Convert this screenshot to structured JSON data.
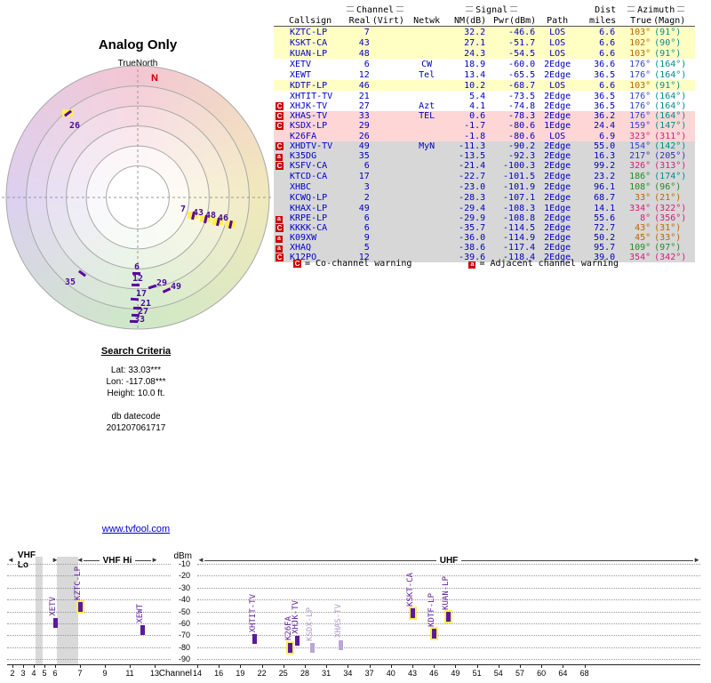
{
  "radar": {
    "title": "Analog Only",
    "north_label": "TrueNorth",
    "n_marker": "N",
    "markers": [
      {
        "label": "26",
        "lx": 78,
        "ly": 98,
        "bx": 72,
        "by": 88,
        "rot": -37,
        "hl": true
      },
      {
        "label": "7",
        "lx": 203,
        "ly": 192,
        "bx": 213,
        "by": 203,
        "rot": -77,
        "hl": true
      },
      {
        "label": "43",
        "lx": 217,
        "ly": 196,
        "bx": 227,
        "by": 207,
        "rot": -77,
        "hl": true
      },
      {
        "label": "48",
        "lx": 231,
        "ly": 199,
        "bx": 241,
        "by": 210,
        "rot": -77,
        "hl": true
      },
      {
        "label": "46",
        "lx": 245,
        "ly": 202,
        "bx": 255,
        "by": 213,
        "rot": -77,
        "hl": true
      },
      {
        "label": "35",
        "lx": 73,
        "ly": 274,
        "bx": 88,
        "by": 268,
        "rot": 37,
        "hl": false
      },
      {
        "label": "6",
        "lx": 151,
        "ly": 257,
        "bx": 149,
        "by": 268,
        "rot": 2,
        "hl": false
      },
      {
        "label": "12",
        "lx": 149,
        "ly": 270,
        "bx": 148,
        "by": 281,
        "rot": 2,
        "hl": false
      },
      {
        "label": "29",
        "lx": 176,
        "ly": 275,
        "bx": 167,
        "by": 283,
        "rot": -18,
        "hl": false
      },
      {
        "label": "49",
        "lx": 192,
        "ly": 279,
        "bx": 183,
        "by": 287,
        "rot": -24,
        "hl": false
      },
      {
        "label": "17",
        "lx": 153,
        "ly": 287,
        "bx": 147,
        "by": 297,
        "rot": 4,
        "hl": false
      },
      {
        "label": "21",
        "lx": 158,
        "ly": 298,
        "bx": 150,
        "by": 307,
        "rot": 2,
        "hl": false
      },
      {
        "label": "27",
        "lx": 155,
        "ly": 307,
        "bx": 148,
        "by": 315,
        "rot": 2,
        "hl": false
      },
      {
        "label": "33",
        "lx": 151,
        "ly": 316,
        "bx": 146,
        "by": 322,
        "rot": 2,
        "hl": false
      }
    ]
  },
  "table": {
    "groups": {
      "channel": "Channel",
      "signal": "Signal",
      "dist": "Dist",
      "azimuth": "Azimuth"
    },
    "columns": [
      "Callsign",
      "Real",
      "(Virt)",
      "Netwk",
      "NM(dB)",
      "Pwr(dBm)",
      "Path",
      "miles",
      "True",
      "(Magn)"
    ],
    "legend": {
      "c_badge": "C",
      "c_text": "= Co-channel warning",
      "a_badge": "a",
      "a_text": "= Adjacent channel warning"
    },
    "rows": [
      {
        "warn": "",
        "callsign": "KZTC-LP",
        "real": "7",
        "virt": "",
        "netwk": "",
        "nm": "32.2",
        "pwr": "-46.6",
        "path": "LOS",
        "miles": "6.6",
        "true": "103°",
        "magn": "(91°)",
        "tier": "yellow",
        "tc": "#bb6600",
        "mc": "#008b8b"
      },
      {
        "warn": "",
        "callsign": "KSKT-CA",
        "real": "43",
        "virt": "",
        "netwk": "",
        "nm": "27.1",
        "pwr": "-51.7",
        "path": "LOS",
        "miles": "6.6",
        "true": "102°",
        "magn": "(90°)",
        "tier": "yellow",
        "tc": "#bb6600",
        "mc": "#008b8b"
      },
      {
        "warn": "",
        "callsign": "KUAN-LP",
        "real": "48",
        "virt": "",
        "netwk": "",
        "nm": "24.3",
        "pwr": "-54.5",
        "path": "LOS",
        "miles": "6.6",
        "true": "103°",
        "magn": "(91°)",
        "tier": "yellow",
        "tc": "#bb6600",
        "mc": "#008b8b"
      },
      {
        "warn": "",
        "callsign": "XETV",
        "real": "6",
        "virt": "",
        "netwk": "CW",
        "nm": "18.9",
        "pwr": "-60.0",
        "path": "2Edge",
        "miles": "36.6",
        "true": "176°",
        "magn": "(164°)",
        "tier": "white",
        "tc": "#3344cc",
        "mc": "#008b8b"
      },
      {
        "warn": "",
        "callsign": "XEWT",
        "real": "12",
        "virt": "",
        "netwk": "Tel",
        "nm": "13.4",
        "pwr": "-65.5",
        "path": "2Edge",
        "miles": "36.5",
        "true": "176°",
        "magn": "(164°)",
        "tier": "white",
        "tc": "#3344cc",
        "mc": "#008b8b"
      },
      {
        "warn": "",
        "callsign": "KDTF-LP",
        "real": "46",
        "virt": "",
        "netwk": "",
        "nm": "10.2",
        "pwr": "-68.7",
        "path": "LOS",
        "miles": "6.6",
        "true": "103°",
        "magn": "(91°)",
        "tier": "yellow",
        "tc": "#bb6600",
        "mc": "#008b8b"
      },
      {
        "warn": "",
        "callsign": "XHTIT-TV",
        "real": "21",
        "virt": "",
        "netwk": "",
        "nm": "5.4",
        "pwr": "-73.5",
        "path": "2Edge",
        "miles": "36.5",
        "true": "176°",
        "magn": "(164°)",
        "tier": "white",
        "tc": "#3344cc",
        "mc": "#008b8b"
      },
      {
        "warn": "C",
        "callsign": "XHJK-TV",
        "real": "27",
        "virt": "",
        "netwk": "Azt",
        "nm": "4.1",
        "pwr": "-74.8",
        "path": "2Edge",
        "miles": "36.5",
        "true": "176°",
        "magn": "(164°)",
        "tier": "white",
        "tc": "#3344cc",
        "mc": "#008b8b"
      },
      {
        "warn": "C",
        "callsign": "XHAS-TV",
        "real": "33",
        "virt": "",
        "netwk": "TEL",
        "nm": "0.6",
        "pwr": "-78.3",
        "path": "2Edge",
        "miles": "36.2",
        "true": "176°",
        "magn": "(164°)",
        "tier": "pink",
        "tc": "#3344cc",
        "mc": "#008b8b"
      },
      {
        "warn": "C",
        "callsign": "KSDX-LP",
        "real": "29",
        "virt": "",
        "netwk": "",
        "nm": "-1.7",
        "pwr": "-80.6",
        "path": "1Edge",
        "miles": "24.4",
        "true": "159°",
        "magn": "(147°)",
        "tier": "pink",
        "tc": "#3344cc",
        "mc": "#008b8b"
      },
      {
        "warn": "",
        "callsign": "K26FA",
        "real": "26",
        "virt": "",
        "netwk": "",
        "nm": "-1.8",
        "pwr": "-80.6",
        "path": "LOS",
        "miles": "6.9",
        "true": "323°",
        "magn": "(311°)",
        "tier": "pink",
        "tc": "#cc2277",
        "mc": "#cc2277"
      },
      {
        "warn": "C",
        "callsign": "XHDTV-TV",
        "real": "49",
        "virt": "",
        "netwk": "MyN",
        "nm": "-11.3",
        "pwr": "-90.2",
        "path": "2Edge",
        "miles": "55.0",
        "true": "154°",
        "magn": "(142°)",
        "tier": "gray",
        "tc": "#3344cc",
        "mc": "#008b8b"
      },
      {
        "warn": "a",
        "callsign": "K35DG",
        "real": "35",
        "virt": "",
        "netwk": "",
        "nm": "-13.5",
        "pwr": "-92.3",
        "path": "2Edge",
        "miles": "16.3",
        "true": "217°",
        "magn": "(205°)",
        "tier": "gray",
        "tc": "#3333aa",
        "mc": "#3333aa"
      },
      {
        "warn": "C",
        "callsign": "KSFV-CA",
        "real": "6",
        "virt": "",
        "netwk": "",
        "nm": "-21.4",
        "pwr": "-100.3",
        "path": "2Edge",
        "miles": "99.2",
        "true": "326°",
        "magn": "(313°)",
        "tier": "gray",
        "tc": "#cc2277",
        "mc": "#cc2277"
      },
      {
        "warn": "",
        "callsign": "KTCD-CA",
        "real": "17",
        "virt": "",
        "netwk": "",
        "nm": "-22.7",
        "pwr": "-101.5",
        "path": "2Edge",
        "miles": "23.2",
        "true": "186°",
        "magn": "(174°)",
        "tier": "gray",
        "tc": "#1f8b1f",
        "mc": "#008b8b"
      },
      {
        "warn": "",
        "callsign": "XHBC",
        "real": "3",
        "virt": "",
        "netwk": "",
        "nm": "-23.0",
        "pwr": "-101.9",
        "path": "2Edge",
        "miles": "96.1",
        "true": "108°",
        "magn": "(96°)",
        "tier": "gray",
        "tc": "#1f8b1f",
        "mc": "#1f8b1f"
      },
      {
        "warn": "",
        "callsign": "KCWQ-LP",
        "real": "2",
        "virt": "",
        "netwk": "",
        "nm": "-28.3",
        "pwr": "-107.1",
        "path": "2Edge",
        "miles": "68.7",
        "true": "33°",
        "magn": "(21°)",
        "tier": "gray",
        "tc": "#bb6600",
        "mc": "#bb6600"
      },
      {
        "warn": "",
        "callsign": "KHAX-LP",
        "real": "49",
        "virt": "",
        "netwk": "",
        "nm": "-29.4",
        "pwr": "-108.3",
        "path": "1Edge",
        "miles": "14.1",
        "true": "334°",
        "magn": "(322°)",
        "tier": "gray",
        "tc": "#cc2277",
        "mc": "#cc2277"
      },
      {
        "warn": "a",
        "callsign": "KRPE-LP",
        "real": "6",
        "virt": "",
        "netwk": "",
        "nm": "-29.9",
        "pwr": "-108.8",
        "path": "2Edge",
        "miles": "55.6",
        "true": "8°",
        "magn": "(356°)",
        "tier": "gray",
        "tc": "#cc2277",
        "mc": "#cc2277"
      },
      {
        "warn": "C",
        "callsign": "KKKK-CA",
        "real": "6",
        "virt": "",
        "netwk": "",
        "nm": "-35.7",
        "pwr": "-114.5",
        "path": "2Edge",
        "miles": "72.7",
        "true": "43°",
        "magn": "(31°)",
        "tier": "gray",
        "tc": "#bb6600",
        "mc": "#bb6600"
      },
      {
        "warn": "a",
        "callsign": "K09XW",
        "real": "9",
        "virt": "",
        "netwk": "",
        "nm": "-36.0",
        "pwr": "-114.9",
        "path": "2Edge",
        "miles": "50.2",
        "true": "45°",
        "magn": "(33°)",
        "tier": "gray",
        "tc": "#bb6600",
        "mc": "#bb6600"
      },
      {
        "warn": "a",
        "callsign": "XHAQ",
        "real": "5",
        "virt": "",
        "netwk": "",
        "nm": "-38.6",
        "pwr": "-117.4",
        "path": "2Edge",
        "miles": "95.7",
        "true": "109°",
        "magn": "(97°)",
        "tier": "gray",
        "tc": "#1f8b1f",
        "mc": "#1f8b1f"
      },
      {
        "warn": "C",
        "callsign": "K12PO",
        "real": "12",
        "virt": "",
        "netwk": "",
        "nm": "-39.6",
        "pwr": "-118.4",
        "path": "2Edge",
        "miles": "39.0",
        "true": "354°",
        "magn": "(342°)",
        "tier": "gray",
        "tc": "#cc2277",
        "mc": "#cc2277"
      }
    ]
  },
  "search": {
    "heading": "Search Criteria",
    "lat": "Lat: 33.03***",
    "lon": "Lon: -117.08***",
    "height": "Height: 10.0 ft.",
    "datecode_label": "db datecode",
    "datecode": "201207061717"
  },
  "link": "www.tvfool.com",
  "chart_data": {
    "type": "scatter",
    "title": "",
    "ylabel": "dBm",
    "xlabel": "Channel",
    "ylim": [
      -95,
      -5
    ],
    "yticks": [
      -10,
      -20,
      -30,
      -40,
      -50,
      -60,
      -70,
      -80,
      -90
    ],
    "grid": "dotted horizontal",
    "bands": [
      {
        "label": "VHF Lo"
      },
      {
        "label": "VHF Hi"
      },
      {
        "label": "UHF"
      }
    ],
    "vhf_ticks": [
      2,
      3,
      4,
      5,
      6,
      7,
      9,
      11,
      13
    ],
    "uhf_ticks": [
      14,
      16,
      19,
      22,
      25,
      28,
      31,
      34,
      37,
      40,
      43,
      46,
      49,
      51,
      54,
      57,
      60,
      64,
      68
    ],
    "gaps": [
      [
        4,
        5
      ],
      [
        6,
        7
      ]
    ],
    "stations": [
      {
        "callsign": "XETV",
        "channel": 6,
        "dbm": -60.0,
        "hl": false,
        "faded": false
      },
      {
        "callsign": "KZTC-LP",
        "channel": 7,
        "dbm": -46.6,
        "hl": true,
        "faded": false
      },
      {
        "callsign": "XEWT",
        "channel": 12,
        "dbm": -65.5,
        "hl": false,
        "faded": false
      },
      {
        "callsign": "XHTIT-TV",
        "channel": 21,
        "dbm": -73.5,
        "hl": false,
        "faded": false
      },
      {
        "callsign": "K26FA",
        "channel": 26,
        "dbm": -80.6,
        "hl": true,
        "faded": false
      },
      {
        "callsign": "XHJK-TV",
        "channel": 27,
        "dbm": -74.8,
        "hl": false,
        "faded": false
      },
      {
        "callsign": "KSDX-LP",
        "channel": 29,
        "dbm": -80.6,
        "hl": false,
        "faded": true
      },
      {
        "callsign": "XHAS-TV",
        "channel": 33,
        "dbm": -78.3,
        "hl": false,
        "faded": true
      },
      {
        "callsign": "KSKT-CA",
        "channel": 43,
        "dbm": -51.7,
        "hl": true,
        "faded": false
      },
      {
        "callsign": "KDTF-LP",
        "channel": 46,
        "dbm": -68.7,
        "hl": true,
        "faded": false
      },
      {
        "callsign": "KUAN-LP",
        "channel": 48,
        "dbm": -54.5,
        "hl": true,
        "faded": false
      }
    ]
  }
}
